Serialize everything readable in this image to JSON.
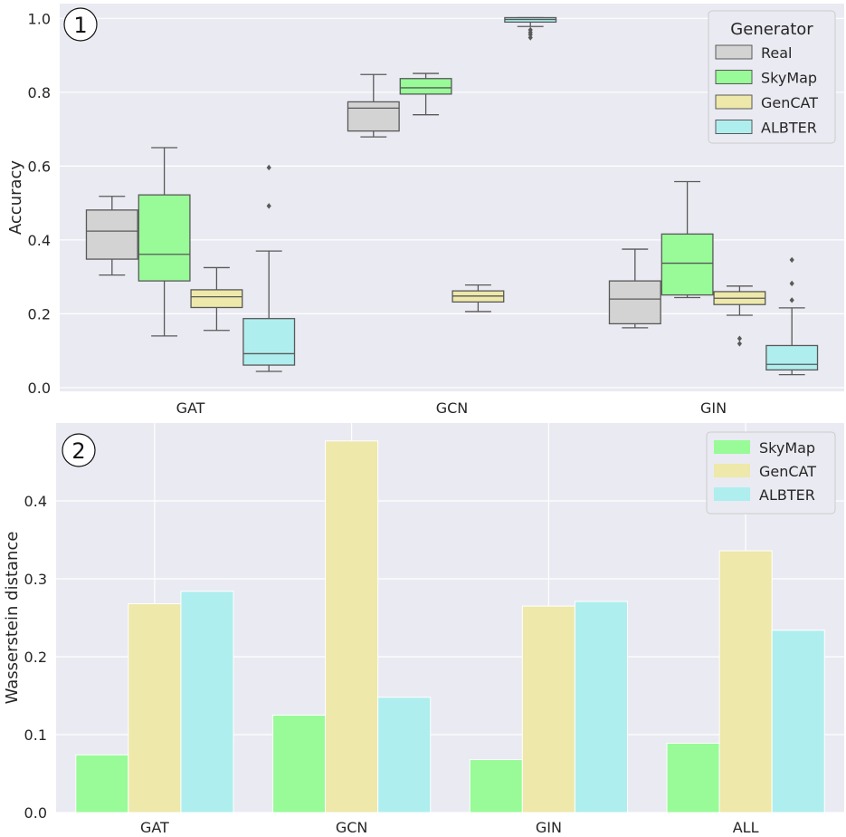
{
  "chart_data": [
    {
      "type": "box",
      "panel_label": "1",
      "title": "",
      "xlabel": "",
      "ylabel": "Accuracy",
      "ylim": [
        -0.01,
        1.04
      ],
      "yticks": [
        "0.0",
        "0.2",
        "0.4",
        "0.6",
        "0.8",
        "1.0"
      ],
      "categories": [
        "GAT",
        "GCN",
        "GIN"
      ],
      "legend": {
        "title": "Generator",
        "position": "top-right"
      },
      "series": [
        {
          "name": "Real",
          "color": "#d3d3d3",
          "boxes": [
            {
              "min": 0.305,
              "q1": 0.348,
              "median": 0.424,
              "q3": 0.481,
              "max": 0.518,
              "outliers": []
            },
            {
              "min": 0.679,
              "q1": 0.695,
              "median": 0.757,
              "q3": 0.774,
              "max": 0.848,
              "outliers": []
            },
            {
              "min": 0.162,
              "q1": 0.173,
              "median": 0.24,
              "q3": 0.289,
              "max": 0.375,
              "outliers": []
            }
          ]
        },
        {
          "name": "SkyMap",
          "color": "#98fb98",
          "boxes": [
            {
              "min": 0.14,
              "q1": 0.289,
              "median": 0.361,
              "q3": 0.522,
              "max": 0.65,
              "outliers": []
            },
            {
              "min": 0.739,
              "q1": 0.795,
              "median": 0.812,
              "q3": 0.837,
              "max": 0.851,
              "outliers": []
            },
            {
              "min": 0.244,
              "q1": 0.251,
              "median": 0.337,
              "q3": 0.416,
              "max": 0.558,
              "outliers": []
            }
          ]
        },
        {
          "name": "GenCAT",
          "color": "#eee8aa",
          "boxes": [
            {
              "min": 0.155,
              "q1": 0.217,
              "median": 0.246,
              "q3": 0.265,
              "max": 0.325,
              "outliers": []
            },
            {
              "min": 0.206,
              "q1": 0.232,
              "median": 0.248,
              "q3": 0.262,
              "max": 0.278,
              "outliers": []
            },
            {
              "min": 0.196,
              "q1": 0.225,
              "median": 0.242,
              "q3": 0.26,
              "max": 0.275,
              "outliers": [
                0.133,
                0.119
              ]
            }
          ]
        },
        {
          "name": "ALBTER",
          "color": "#afeeee",
          "boxes": [
            {
              "min": 0.044,
              "q1": 0.061,
              "median": 0.092,
              "q3": 0.187,
              "max": 0.37,
              "outliers": [
                0.492,
                0.596
              ]
            },
            {
              "min": 0.978,
              "q1": 0.99,
              "median": 0.997,
              "q3": 1.002,
              "max": 1.002,
              "outliers": [
                0.969,
                0.962,
                0.956,
                0.948
              ]
            },
            {
              "min": 0.035,
              "q1": 0.048,
              "median": 0.063,
              "q3": 0.114,
              "max": 0.216,
              "outliers": [
                0.237,
                0.282,
                0.346
              ]
            }
          ]
        }
      ]
    },
    {
      "type": "bar",
      "panel_label": "2",
      "title": "",
      "xlabel": "",
      "ylabel": "Wasserstein distance",
      "ylim": [
        0,
        0.5
      ],
      "yticks": [
        "0.0",
        "0.1",
        "0.2",
        "0.3",
        "0.4"
      ],
      "categories": [
        "GAT",
        "GCN",
        "GIN",
        "ALL"
      ],
      "legend": {
        "title": "",
        "position": "top-right"
      },
      "series": [
        {
          "name": "SkyMap",
          "color": "#98fb98",
          "values": [
            0.074,
            0.125,
            0.068,
            0.089
          ]
        },
        {
          "name": "GenCAT",
          "color": "#eee8aa",
          "values": [
            0.268,
            0.477,
            0.265,
            0.336
          ]
        },
        {
          "name": "ALBTER",
          "color": "#afeeee",
          "values": [
            0.284,
            0.148,
            0.271,
            0.234
          ]
        }
      ]
    }
  ]
}
